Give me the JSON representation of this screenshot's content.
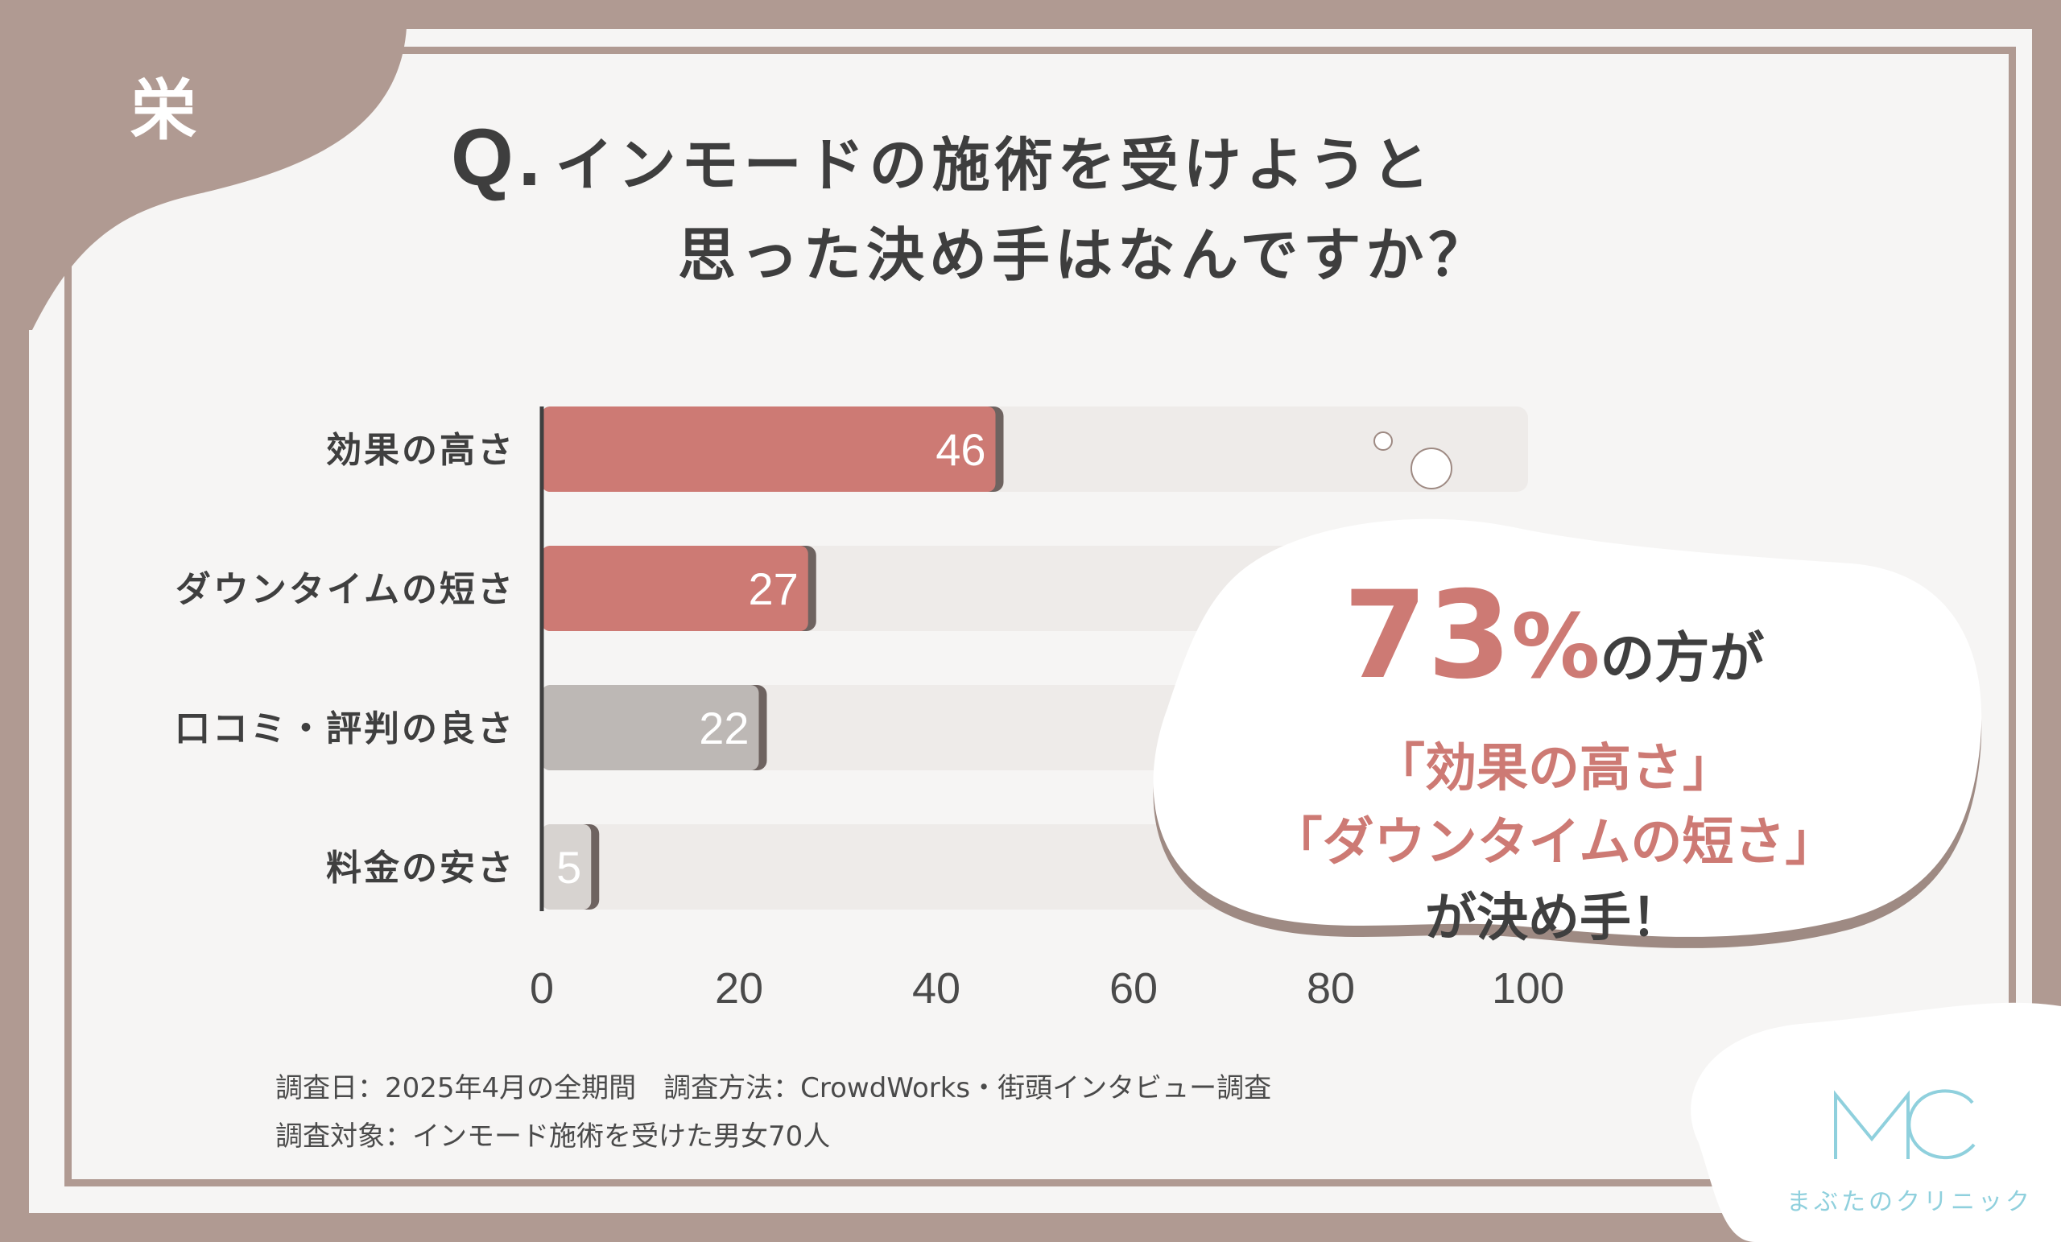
{
  "badge": "栄",
  "title": {
    "q": "Q.",
    "line1": "インモードの施術を受けようと",
    "line2": "思った決め手はなんですか？"
  },
  "chart_data": {
    "type": "bar",
    "orientation": "horizontal",
    "categories": [
      "効果の高さ",
      "ダウンタイムの短さ",
      "口コミ・評判の良さ",
      "料金の安さ"
    ],
    "values": [
      46,
      27,
      22,
      5
    ],
    "value_labels": [
      "46",
      "27",
      "22",
      "5"
    ],
    "xlim": [
      0,
      100
    ],
    "x_ticks": [
      "0",
      "20",
      "40",
      "60",
      "80",
      "100"
    ],
    "bar_colors": [
      "#cd7a74",
      "#cd7a74",
      "#bdb8b5",
      "#d7d3d0"
    ]
  },
  "callout": {
    "pct": "73",
    "pct_unit": "%",
    "pct_suffix": "の方が",
    "line2": "「効果の高さ」",
    "line3": "「ダウンタイムの短さ」",
    "line4": "が決め手！"
  },
  "footer": {
    "line1": "調査日：2025年4月の全期間　調査方法：CrowdWorks・街頭インタビュー調査",
    "line2": "調査対象：インモード施術を受けた男女70人"
  },
  "logo": {
    "text": "まぶたのクリニック",
    "accent_color": "#8fd0dd"
  },
  "colors": {
    "frame": "#b09a92",
    "accent_pink": "#cd7a74",
    "text_dark": "#3e3e3e"
  }
}
